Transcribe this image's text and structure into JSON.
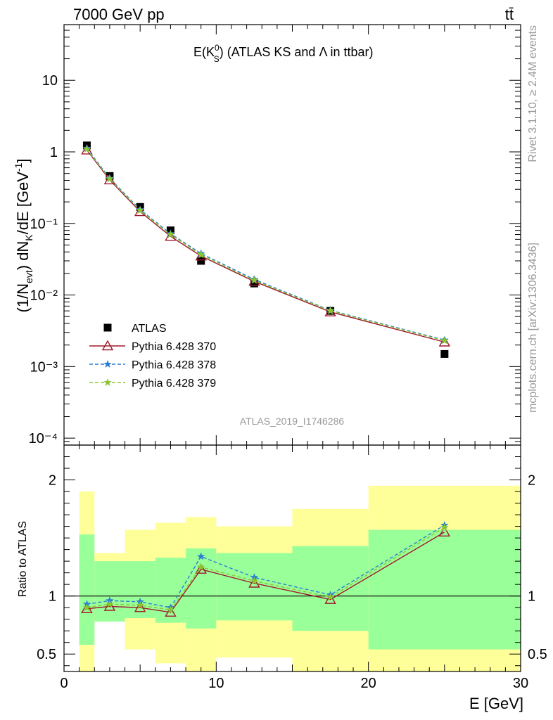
{
  "header": {
    "left": "7000 GeV pp",
    "right": "tt̄"
  },
  "side_text": {
    "rivet": "Rivet 3.1.10, ≥ 2.4M events",
    "mcplots": "mcplots.cern.ch [arXiv:1306.3436]"
  },
  "watermark": "ATLAS_2019_I1746286",
  "chart_data": [
    {
      "type": "line",
      "title": {
        "main": "E(K",
        "sup": "0",
        "sub": "S",
        "rest": ") (ATLAS KS and Λ in ttbar)"
      },
      "ylabel": "(1/N_evt) dN_K/dE [GeV^-1]",
      "xlim": [
        0,
        30
      ],
      "ylim": [
        8e-05,
        60
      ],
      "yscale": "log",
      "ytick_labels": [
        "10",
        "1",
        "10⁻¹",
        "10⁻²",
        "10⁻³",
        "10⁻⁴"
      ],
      "legend_position": "lower-left",
      "x": [
        1.5,
        3,
        5,
        7,
        9,
        12.5,
        17.5,
        25
      ],
      "series": [
        {
          "name": "ATLAS",
          "color": "#000000",
          "marker": "square",
          "values": [
            1.23,
            0.46,
            0.17,
            0.08,
            0.03,
            0.0145,
            0.006,
            0.0015
          ]
        },
        {
          "name": "Pythia 6.428 370",
          "color": "#a0182c",
          "marker": "open-triangle",
          "linestyle": "solid",
          "values": [
            1.06,
            0.405,
            0.146,
            0.066,
            0.035,
            0.0155,
            0.0058,
            0.0022
          ]
        },
        {
          "name": "Pythia 6.428 378",
          "color": "#2a7fd4",
          "marker": "star",
          "linestyle": "dashed",
          "values": [
            1.12,
            0.428,
            0.156,
            0.072,
            0.038,
            0.0165,
            0.0061,
            0.00235
          ]
        },
        {
          "name": "Pythia 6.428 379",
          "color": "#8ac832",
          "marker": "star",
          "linestyle": "dashed",
          "values": [
            1.09,
            0.418,
            0.152,
            0.07,
            0.0365,
            0.016,
            0.006,
            0.0023
          ]
        }
      ]
    },
    {
      "type": "line",
      "ylabel": "Ratio to ATLAS",
      "xlabel": "E [GeV]",
      "xlim": [
        0,
        30
      ],
      "ylim": [
        0.35,
        2.3
      ],
      "xticks": [
        "0",
        "10",
        "20",
        "30"
      ],
      "yticks": [
        "0.5",
        "1",
        "2"
      ],
      "x": [
        1.5,
        3,
        5,
        7,
        9,
        12.5,
        17.5,
        25
      ],
      "bands": {
        "edges": [
          1,
          2,
          4,
          6,
          8,
          10,
          15,
          20,
          30
        ],
        "yellow": [
          [
            0.2,
            1.9
          ],
          [
            0.78,
            1.37
          ],
          [
            0.54,
            1.57
          ],
          [
            0.42,
            1.63
          ],
          [
            0.35,
            1.68
          ],
          [
            0.47,
            1.6
          ],
          [
            0.2,
            1.75
          ],
          [
            0.2,
            1.95
          ]
        ],
        "green": [
          [
            0.58,
            1.53
          ],
          [
            0.78,
            1.3
          ],
          [
            0.81,
            1.3
          ],
          [
            0.77,
            1.33
          ],
          [
            0.72,
            1.41
          ],
          [
            0.79,
            1.37
          ],
          [
            0.7,
            1.43
          ],
          [
            0.54,
            1.57
          ]
        ]
      },
      "series": [
        {
          "name": "Pythia 6.428 370",
          "color": "#a0182c",
          "marker": "open-triangle",
          "linestyle": "solid",
          "values": [
            0.89,
            0.91,
            0.9,
            0.86,
            1.23,
            1.11,
            0.97,
            1.55
          ]
        },
        {
          "name": "Pythia 6.428 378",
          "color": "#2a7fd4",
          "marker": "star",
          "linestyle": "dashed",
          "values": [
            0.93,
            0.96,
            0.95,
            0.9,
            1.34,
            1.16,
            1.01,
            1.61
          ]
        },
        {
          "name": "Pythia 6.428 379",
          "color": "#8ac832",
          "marker": "star",
          "linestyle": "dashed",
          "values": [
            0.9,
            0.93,
            0.92,
            0.88,
            1.25,
            1.13,
            0.99,
            1.59
          ]
        }
      ]
    }
  ]
}
